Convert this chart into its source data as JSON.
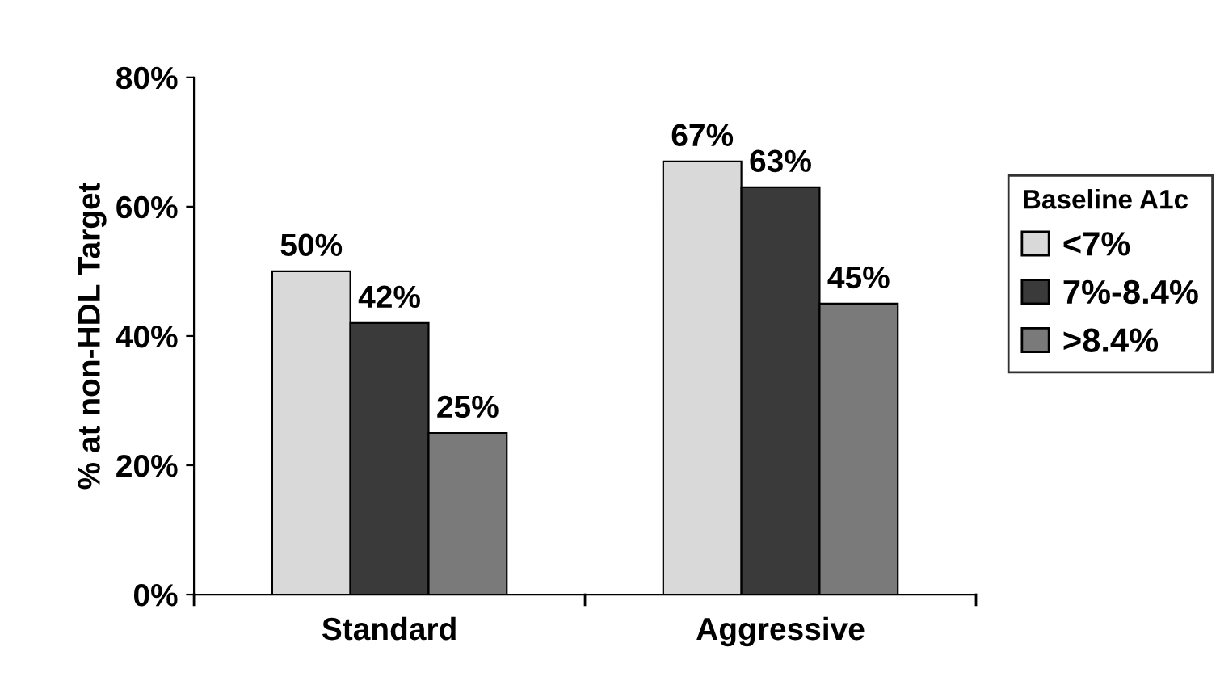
{
  "chart_data": {
    "type": "bar",
    "ylabel": "% at non-HDL Target",
    "legend_title": "Baseline A1c",
    "categories": [
      "Standard",
      "Aggressive"
    ],
    "series": [
      {
        "name": "<7%",
        "color": "#d9d9d9",
        "values": [
          50,
          67
        ],
        "value_labels": [
          "50%",
          "67%"
        ]
      },
      {
        "name": "7%-8.4%",
        "color": "#3a3a3a",
        "values": [
          42,
          63
        ],
        "value_labels": [
          "42%",
          "63%"
        ]
      },
      {
        "name": ">8.4%",
        "color": "#7a7a7a",
        "values": [
          25,
          45
        ],
        "value_labels": [
          "25%",
          "45%"
        ]
      }
    ],
    "ylim": [
      0,
      80
    ],
    "yticks": [
      {
        "value": 0,
        "label": "0%"
      },
      {
        "value": 20,
        "label": "20%"
      },
      {
        "value": 40,
        "label": "40%"
      },
      {
        "value": 60,
        "label": "60%"
      },
      {
        "value": 80,
        "label": "80%"
      }
    ],
    "grid": false,
    "legend": "right"
  }
}
